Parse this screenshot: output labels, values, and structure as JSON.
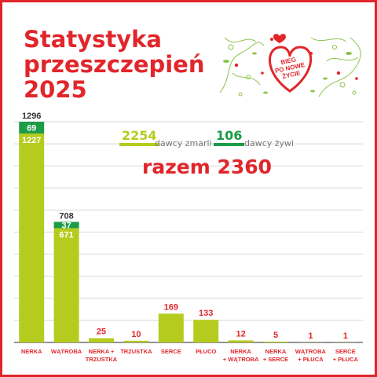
{
  "title": [
    "Statystyka",
    "przeszczepień",
    "2025"
  ],
  "logo_text": [
    "BIEG",
    "PO NOWE",
    "ŻYCIE"
  ],
  "legend": {
    "deceased_value": "2254",
    "deceased_label": "dawcy zmarli",
    "living_value": "106",
    "living_label": "dawcy żywi"
  },
  "total": "razem 2360",
  "colors": {
    "brand_red": "#e1262b",
    "deceased_green": "#b5cc1f",
    "living_green": "#1c9b48",
    "grid": "#d8d8d8"
  },
  "chart_data": {
    "type": "bar",
    "stacked": true,
    "ylim": [
      0,
      1296
    ],
    "grid": true,
    "categories": [
      [
        "NERKA"
      ],
      [
        "WĄTROBA"
      ],
      [
        "NERKA +",
        "TRZUSTKA"
      ],
      [
        "TRZUSTKA"
      ],
      [
        "SERCE"
      ],
      [
        "PŁUCO"
      ],
      [
        "NERKA",
        "+ WĄTROBA"
      ],
      [
        "NERKA",
        "+ SERCE"
      ],
      [
        "WĄTROBA",
        "+ PŁUCA"
      ],
      [
        "SERCE",
        "+ PŁUCA"
      ]
    ],
    "series": [
      {
        "name": "dawcy zmarli",
        "values": [
          1227,
          671,
          25,
          10,
          169,
          133,
          12,
          5,
          1,
          1
        ]
      },
      {
        "name": "dawcy żywi",
        "values": [
          69,
          37,
          0,
          0,
          0,
          0,
          0,
          0,
          0,
          0
        ]
      }
    ],
    "totals": [
      1296,
      708,
      null,
      null,
      null,
      null,
      null,
      null,
      null,
      null
    ]
  }
}
